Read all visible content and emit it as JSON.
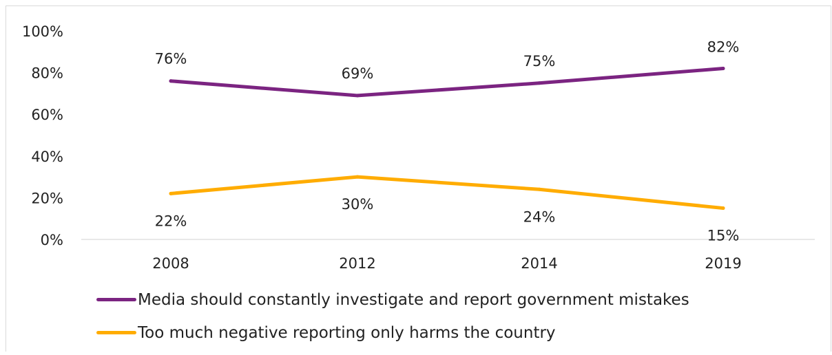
{
  "chart_data": {
    "type": "line",
    "categories": [
      "2008",
      "2012",
      "2014",
      "2019"
    ],
    "series": [
      {
        "name": "Media should constantly investigate and report government mistakes",
        "values": [
          76,
          69,
          75,
          82
        ],
        "labels": [
          "76%",
          "69%",
          "75%",
          "82%"
        ],
        "color": "#7b2481"
      },
      {
        "name": "Too much negative reporting only harms the country",
        "values": [
          22,
          30,
          24,
          15
        ],
        "labels": [
          "22%",
          "30%",
          "24%",
          "15%"
        ],
        "color": "#ffac00"
      }
    ],
    "ylim": [
      0,
      100
    ],
    "yticks": [
      0,
      20,
      40,
      60,
      80,
      100
    ],
    "ytick_labels": [
      "0%",
      "20%",
      "40%",
      "60%",
      "80%",
      "100%"
    ],
    "grid": false,
    "legend_position": "bottom"
  }
}
